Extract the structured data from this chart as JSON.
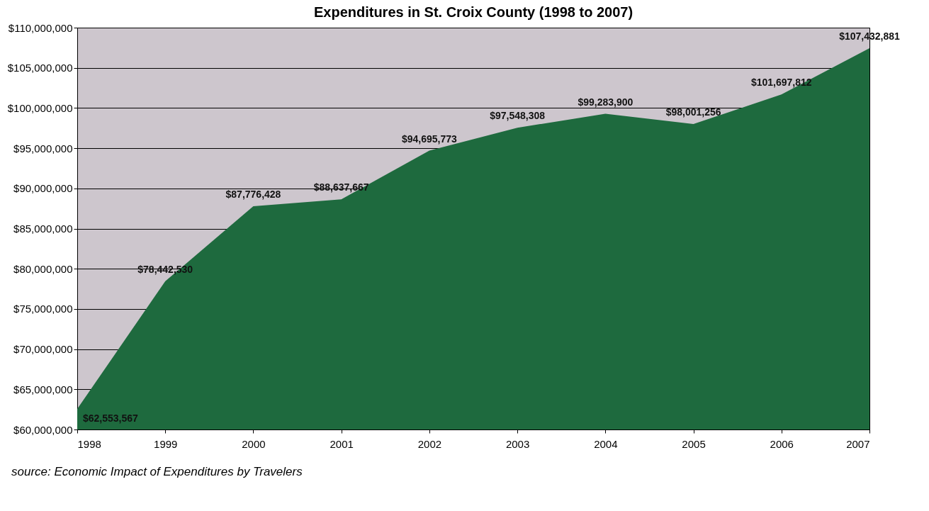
{
  "chart_data": {
    "type": "area",
    "title": "Expenditures in St. Croix County (1998 to 2007)",
    "categories": [
      "1998",
      "1999",
      "2000",
      "2001",
      "2002",
      "2003",
      "2004",
      "2005",
      "2006",
      "2007"
    ],
    "series": [
      {
        "color": "#1e6a3e",
        "values": [
          62553567,
          78442530,
          87776428,
          88637667,
          94695773,
          97548308,
          99283900,
          98001256,
          101697812,
          107432881
        ],
        "value_labels": [
          "$62,553,567",
          "$78,442,530",
          "$87,776,428",
          "$88,637,667",
          "$94,695,773",
          "$97,548,308",
          "$99,283,900",
          "$98,001,256",
          "$101,697,812",
          "$107,432,881"
        ]
      }
    ],
    "ylim": [
      60000000,
      110000000
    ],
    "yticks": [
      {
        "value": 60000000,
        "label": "$60,000,000"
      },
      {
        "value": 65000000,
        "label": "$65,000,000"
      },
      {
        "value": 70000000,
        "label": "$70,000,000"
      },
      {
        "value": 75000000,
        "label": "$75,000,000"
      },
      {
        "value": 80000000,
        "label": "$80,000,000"
      },
      {
        "value": 85000000,
        "label": "$85,000,000"
      },
      {
        "value": 90000000,
        "label": "$90,000,000"
      },
      {
        "value": 95000000,
        "label": "$95,000,000"
      },
      {
        "value": 100000000,
        "label": "$100,000,000"
      },
      {
        "value": 105000000,
        "label": "$105,000,000"
      },
      {
        "value": 110000000,
        "label": "$110,000,000"
      }
    ],
    "grid": "y",
    "legend": false,
    "annotations": [
      "source: Economic Impact of Expenditures by Travelers"
    ]
  }
}
